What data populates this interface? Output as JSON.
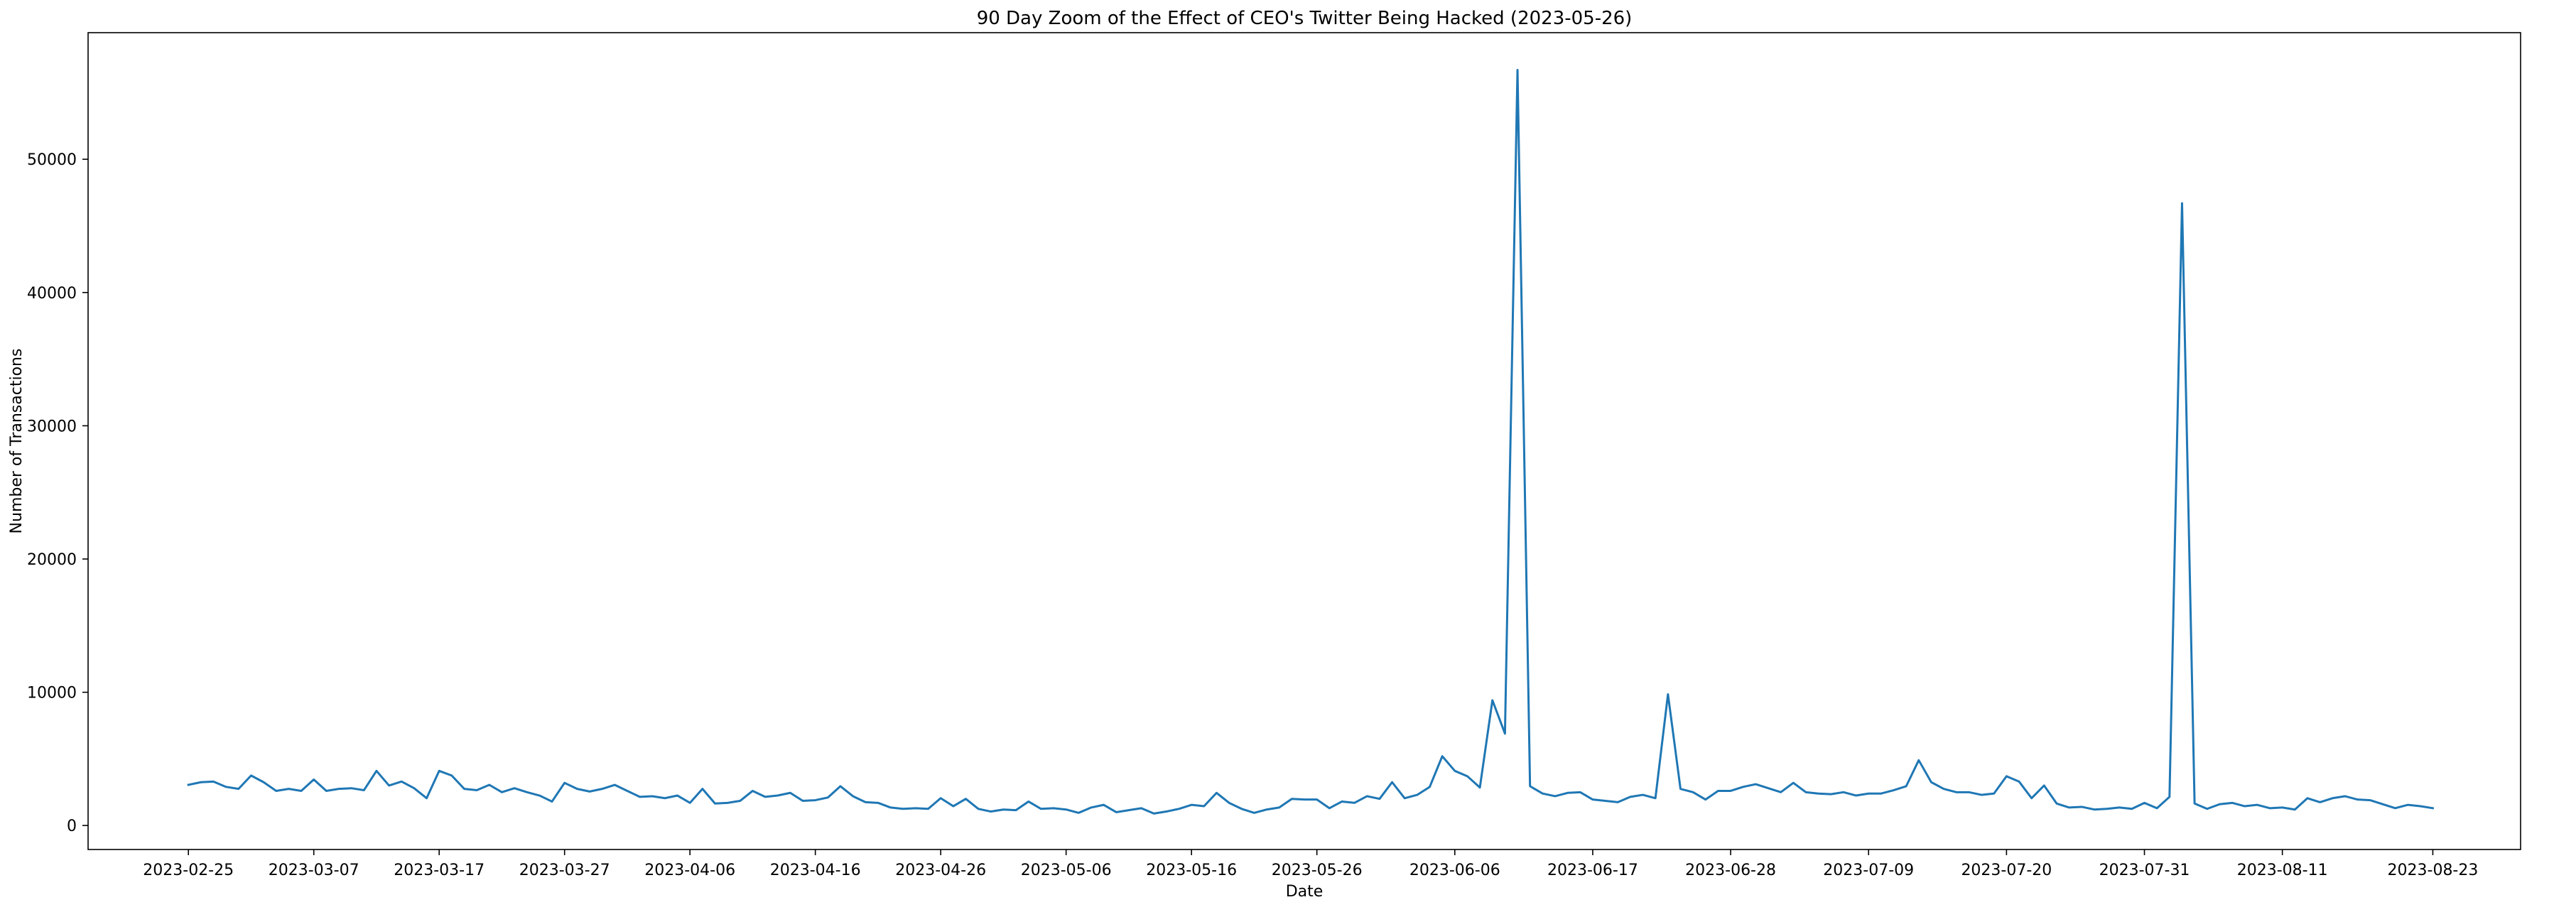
{
  "chart_data": {
    "type": "line",
    "title": "90 Day Zoom of the Effect of CEO's Twitter Being Hacked (2023-05-26)",
    "xlabel": "Date",
    "ylabel": "Number of Transactions",
    "xlim": [
      "2023-02-17",
      "2023-08-30"
    ],
    "ylim": [
      -1800,
      59500
    ],
    "grid": false,
    "x_ticks": [
      "2023-02-25",
      "2023-03-07",
      "2023-03-17",
      "2023-03-27",
      "2023-04-06",
      "2023-04-16",
      "2023-04-26",
      "2023-05-06",
      "2023-05-16",
      "2023-05-26",
      "2023-06-06",
      "2023-06-17",
      "2023-06-28",
      "2023-07-09",
      "2023-07-20",
      "2023-07-31",
      "2023-08-11",
      "2023-08-23"
    ],
    "y_ticks": [
      0,
      10000,
      20000,
      30000,
      40000,
      50000
    ],
    "series": [
      {
        "color": "#1f77b4",
        "x": [
          "2023-02-25",
          "2023-02-26",
          "2023-02-27",
          "2023-02-28",
          "2023-03-01",
          "2023-03-02",
          "2023-03-03",
          "2023-03-04",
          "2023-03-05",
          "2023-03-06",
          "2023-03-07",
          "2023-03-08",
          "2023-03-09",
          "2023-03-10",
          "2023-03-11",
          "2023-03-12",
          "2023-03-13",
          "2023-03-14",
          "2023-03-15",
          "2023-03-16",
          "2023-03-17",
          "2023-03-18",
          "2023-03-19",
          "2023-03-20",
          "2023-03-21",
          "2023-03-22",
          "2023-03-23",
          "2023-03-24",
          "2023-03-25",
          "2023-03-26",
          "2023-03-27",
          "2023-03-28",
          "2023-03-29",
          "2023-03-30",
          "2023-03-31",
          "2023-04-01",
          "2023-04-02",
          "2023-04-03",
          "2023-04-04",
          "2023-04-05",
          "2023-04-06",
          "2023-04-07",
          "2023-04-08",
          "2023-04-09",
          "2023-04-10",
          "2023-04-11",
          "2023-04-12",
          "2023-04-13",
          "2023-04-14",
          "2023-04-15",
          "2023-04-16",
          "2023-04-17",
          "2023-04-18",
          "2023-04-19",
          "2023-04-20",
          "2023-04-21",
          "2023-04-22",
          "2023-04-23",
          "2023-04-24",
          "2023-04-25",
          "2023-04-26",
          "2023-04-27",
          "2023-04-28",
          "2023-04-29",
          "2023-04-30",
          "2023-05-01",
          "2023-05-02",
          "2023-05-03",
          "2023-05-04",
          "2023-05-05",
          "2023-05-06",
          "2023-05-07",
          "2023-05-08",
          "2023-05-09",
          "2023-05-10",
          "2023-05-11",
          "2023-05-12",
          "2023-05-13",
          "2023-05-14",
          "2023-05-15",
          "2023-05-16",
          "2023-05-17",
          "2023-05-18",
          "2023-05-19",
          "2023-05-20",
          "2023-05-21",
          "2023-05-22",
          "2023-05-23",
          "2023-05-24",
          "2023-05-25",
          "2023-05-26",
          "2023-05-27",
          "2023-05-28",
          "2023-05-29",
          "2023-05-30",
          "2023-05-31",
          "2023-06-01",
          "2023-06-02",
          "2023-06-03",
          "2023-06-04",
          "2023-06-05",
          "2023-06-06",
          "2023-06-07",
          "2023-06-08",
          "2023-06-09",
          "2023-06-10",
          "2023-06-11",
          "2023-06-12",
          "2023-06-13",
          "2023-06-14",
          "2023-06-15",
          "2023-06-16",
          "2023-06-17",
          "2023-06-18",
          "2023-06-19",
          "2023-06-20",
          "2023-06-21",
          "2023-06-22",
          "2023-06-23",
          "2023-06-24",
          "2023-06-25",
          "2023-06-26",
          "2023-06-27",
          "2023-06-28",
          "2023-06-29",
          "2023-06-30",
          "2023-07-01",
          "2023-07-02",
          "2023-07-03",
          "2023-07-04",
          "2023-07-05",
          "2023-07-06",
          "2023-07-07",
          "2023-07-08",
          "2023-07-09",
          "2023-07-10",
          "2023-07-11",
          "2023-07-12",
          "2023-07-13",
          "2023-07-14",
          "2023-07-15",
          "2023-07-16",
          "2023-07-17",
          "2023-07-18",
          "2023-07-19",
          "2023-07-20",
          "2023-07-21",
          "2023-07-22",
          "2023-07-23",
          "2023-07-24",
          "2023-07-25",
          "2023-07-26",
          "2023-07-27",
          "2023-07-28",
          "2023-07-29",
          "2023-07-30",
          "2023-07-31",
          "2023-08-01",
          "2023-08-02",
          "2023-08-03",
          "2023-08-04",
          "2023-08-05",
          "2023-08-06",
          "2023-08-07",
          "2023-08-08",
          "2023-08-09",
          "2023-08-10",
          "2023-08-11",
          "2023-08-12",
          "2023-08-13",
          "2023-08-14",
          "2023-08-15",
          "2023-08-16",
          "2023-08-17",
          "2023-08-18",
          "2023-08-19",
          "2023-08-20",
          "2023-08-21",
          "2023-08-22",
          "2023-08-23"
        ],
        "y": [
          3050,
          3250,
          3300,
          2900,
          2750,
          3750,
          3250,
          2600,
          2750,
          2600,
          3450,
          2600,
          2750,
          2800,
          2650,
          4100,
          3000,
          3300,
          2800,
          2050,
          4100,
          3750,
          2750,
          2650,
          3050,
          2500,
          2800,
          2500,
          2250,
          1800,
          3200,
          2750,
          2550,
          2750,
          3050,
          2600,
          2150,
          2200,
          2050,
          2250,
          1700,
          2750,
          1650,
          1700,
          1850,
          2600,
          2150,
          2250,
          2450,
          1850,
          1900,
          2100,
          2950,
          2200,
          1750,
          1700,
          1350,
          1250,
          1300,
          1250,
          2050,
          1450,
          2000,
          1250,
          1050,
          1200,
          1150,
          1800,
          1250,
          1300,
          1200,
          950,
          1350,
          1550,
          1000,
          1150,
          1300,
          900,
          1050,
          1250,
          1550,
          1450,
          2450,
          1700,
          1250,
          950,
          1200,
          1350,
          2000,
          1950,
          1950,
          1300,
          1800,
          1700,
          2200,
          2000,
          3250,
          2050,
          2300,
          2900,
          5200,
          4100,
          3700,
          2850,
          9400,
          6900,
          56700,
          2950,
          2400,
          2200,
          2450,
          2500,
          1950,
          1850,
          1750,
          2150,
          2300,
          2050,
          9850,
          2750,
          2500,
          1950,
          2600,
          2600,
          2900,
          3100,
          2800,
          2500,
          3200,
          2500,
          2400,
          2350,
          2500,
          2250,
          2400,
          2400,
          2650,
          2950,
          4900,
          3250,
          2750,
          2500,
          2500,
          2300,
          2400,
          3700,
          3300,
          2050,
          3000,
          1650,
          1350,
          1400,
          1200,
          1250,
          1350,
          1250,
          1700,
          1300,
          2150,
          46700,
          1650,
          1250,
          1600,
          1700,
          1450,
          1550,
          1300,
          1350,
          1200,
          2050,
          1750,
          2050,
          2200,
          1950,
          1900,
          1600,
          1300,
          1550,
          1450,
          1300
        ]
      }
    ]
  }
}
